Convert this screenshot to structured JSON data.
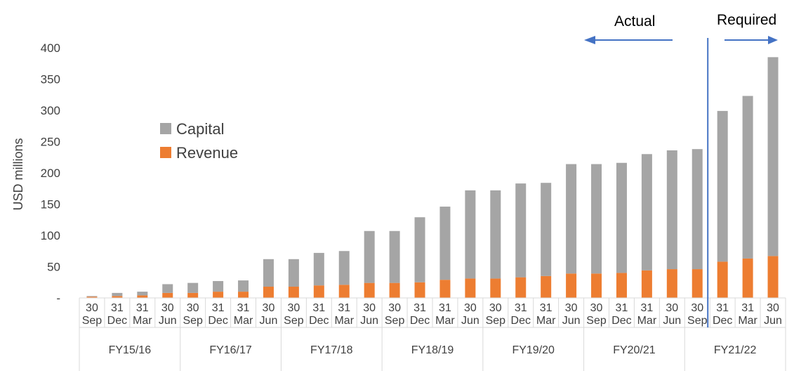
{
  "chart_data": {
    "type": "bar",
    "stacked": true,
    "ylabel": "USD millions",
    "ylim": [
      0,
      400
    ],
    "yticks": [
      "-",
      "50",
      "100",
      "150",
      "200",
      "250",
      "300",
      "350",
      "400"
    ],
    "categories": [
      [
        "30",
        "Sep"
      ],
      [
        "31",
        "Dec"
      ],
      [
        "31",
        "Mar"
      ],
      [
        "30",
        "Jun"
      ],
      [
        "30",
        "Sep"
      ],
      [
        "31",
        "Dec"
      ],
      [
        "31",
        "Mar"
      ],
      [
        "30",
        "Jun"
      ],
      [
        "30",
        "Sep"
      ],
      [
        "31",
        "Dec"
      ],
      [
        "31",
        "Mar"
      ],
      [
        "30",
        "Jun"
      ],
      [
        "30",
        "Sep"
      ],
      [
        "31",
        "Dec"
      ],
      [
        "31",
        "Mar"
      ],
      [
        "30",
        "Jun"
      ],
      [
        "30",
        "Sep"
      ],
      [
        "31",
        "Dec"
      ],
      [
        "31",
        "Mar"
      ],
      [
        "30",
        "Jun"
      ],
      [
        "30",
        "Sep"
      ],
      [
        "31",
        "Dec"
      ],
      [
        "31",
        "Mar"
      ],
      [
        "30",
        "Jun"
      ],
      [
        "30",
        "Sep"
      ],
      [
        "31",
        "Dec"
      ],
      [
        "31",
        "Mar"
      ],
      [
        "30",
        "Jun"
      ]
    ],
    "groups": [
      "FY15/16",
      "FY16/17",
      "FY17/18",
      "FY18/19",
      "FY19/20",
      "FY20/21",
      "FY21/22"
    ],
    "series": [
      {
        "name": "Revenue",
        "color": "#ED7D31",
        "values": [
          2,
          3,
          4,
          8,
          8,
          10,
          10,
          18,
          18,
          20,
          21,
          24,
          24,
          25,
          29,
          31,
          31,
          33,
          35,
          39,
          39,
          40,
          44,
          46,
          46,
          58,
          63,
          67
        ]
      },
      {
        "name": "Capital",
        "color": "#A5A5A5",
        "values": [
          1,
          5,
          6,
          14,
          16,
          17,
          18,
          44,
          44,
          52,
          54,
          83,
          83,
          104,
          117,
          141,
          141,
          150,
          149,
          175,
          175,
          176,
          186,
          190,
          192,
          241,
          260,
          318
        ]
      }
    ],
    "legend": [
      "Capital",
      "Revenue"
    ],
    "legend_position": "left-inside",
    "annotations": {
      "actual_label": "Actual",
      "required_label": "Required",
      "divider_after_index": 24,
      "divider_color": "#4472C4"
    },
    "grid": false
  }
}
